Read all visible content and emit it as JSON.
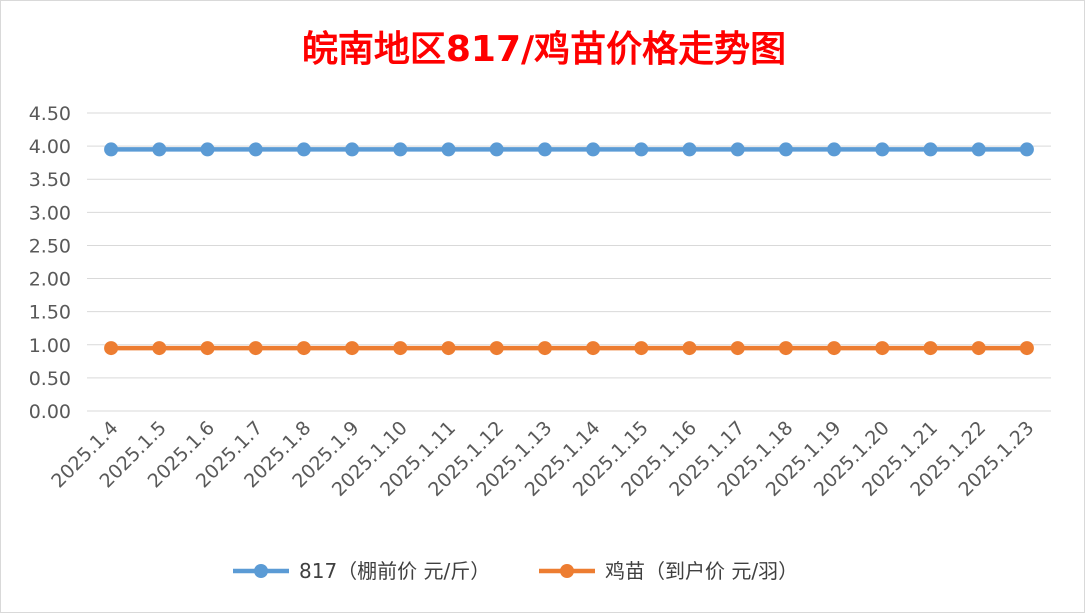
{
  "chart_data": {
    "type": "line",
    "title": "皖南地区817/鸡苗价格走势图",
    "title_color": "#ff0000",
    "categories": [
      "2025.1.4",
      "2025.1.5",
      "2025.1.6",
      "2025.1.7",
      "2025.1.8",
      "2025.1.9",
      "2025.1.10",
      "2025.1.11",
      "2025.1.12",
      "2025.1.13",
      "2025.1.14",
      "2025.1.15",
      "2025.1.16",
      "2025.1.17",
      "2025.1.18",
      "2025.1.19",
      "2025.1.20",
      "2025.1.21",
      "2025.1.22",
      "2025.1.23"
    ],
    "series": [
      {
        "name": "817（棚前价 元/斤）",
        "color": "#5b9bd5",
        "values": [
          3.95,
          3.95,
          3.95,
          3.95,
          3.95,
          3.95,
          3.95,
          3.95,
          3.95,
          3.95,
          3.95,
          3.95,
          3.95,
          3.95,
          3.95,
          3.95,
          3.95,
          3.95,
          3.95,
          3.95
        ]
      },
      {
        "name": "鸡苗（到户价 元/羽）",
        "color": "#ed7d31",
        "values": [
          0.95,
          0.95,
          0.95,
          0.95,
          0.95,
          0.95,
          0.95,
          0.95,
          0.95,
          0.95,
          0.95,
          0.95,
          0.95,
          0.95,
          0.95,
          0.95,
          0.95,
          0.95,
          0.95,
          0.95
        ]
      }
    ],
    "y_ticks": [
      "0.00",
      "0.50",
      "1.00",
      "1.50",
      "2.00",
      "2.50",
      "3.00",
      "3.50",
      "4.00",
      "4.50"
    ],
    "ylim": [
      0,
      4.5
    ],
    "grid": true,
    "legend_position": "bottom"
  }
}
